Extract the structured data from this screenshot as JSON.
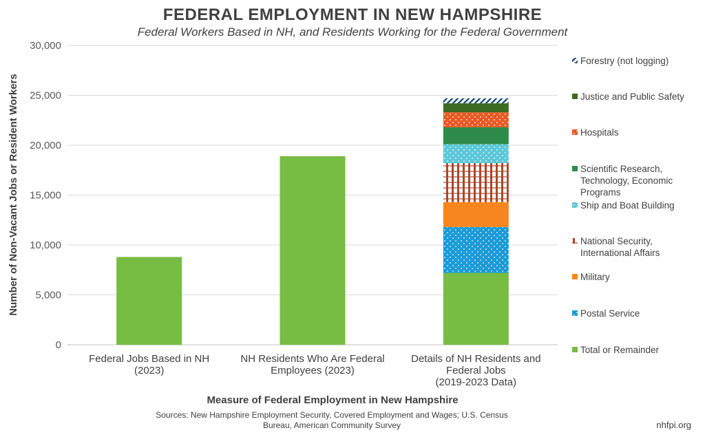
{
  "header": {
    "title": "FEDERAL EMPLOYMENT IN NEW HAMPSHIRE",
    "subtitle": "Federal Workers Based in NH, and Residents Working for the Federal Government"
  },
  "footer": {
    "source": "Sources: New Hampshire Employment Security, Covered Employment and Wages; U.S. Census Bureau, American Community Survey",
    "brand": "nhfpi.org"
  },
  "chart_data": {
    "type": "bar",
    "stacked": true,
    "title": "FEDERAL EMPLOYMENT IN NEW HAMPSHIRE",
    "subtitle": "Federal Workers Based in NH, and Residents Working for the Federal Government",
    "xlabel": "Measure of Federal Employment in New Hampshire",
    "ylabel": "Number of Non-Vacant Jobs or Resident Workers",
    "ylim": [
      0,
      30000
    ],
    "yticks": [
      0,
      5000,
      10000,
      15000,
      20000,
      25000,
      30000
    ],
    "ytick_labels": [
      "0",
      "5,000",
      "10,000",
      "15,000",
      "20,000",
      "25,000",
      "30,000"
    ],
    "grid": true,
    "legend_position": "right",
    "categories": [
      [
        "Federal Jobs Based in NH",
        "(2023)"
      ],
      [
        "NH Residents Who Are Federal",
        "Employees (2023)"
      ],
      [
        "Details of NH Residents and",
        "Federal Jobs",
        "(2019-2023 Data)"
      ]
    ],
    "series": [
      {
        "name": "Total or Remainder",
        "color": "#77BC43",
        "pattern": "solid",
        "values": [
          8800,
          18900,
          7200
        ]
      },
      {
        "name": "Postal Service",
        "color": "#1B9BD7",
        "pattern": "dots",
        "values": [
          0,
          0,
          4600
        ]
      },
      {
        "name": "Military",
        "color": "#F7861E",
        "pattern": "solid",
        "values": [
          0,
          0,
          2500
        ]
      },
      {
        "name": "National Security, International Affairs",
        "color": "#A9472A",
        "pattern": "grid",
        "values": [
          0,
          0,
          3900
        ]
      },
      {
        "name": "Ship and Boat Building",
        "color": "#5CC8D8",
        "pattern": "dots",
        "values": [
          0,
          0,
          1900
        ]
      },
      {
        "name": "Scientific Research, Technology, Economic Programs",
        "color": "#2E8B48",
        "pattern": "solid",
        "values": [
          0,
          0,
          1700
        ]
      },
      {
        "name": "Hospitals",
        "color": "#E85A24",
        "pattern": "dots",
        "values": [
          0,
          0,
          1500
        ]
      },
      {
        "name": "Justice and Public Safety",
        "color": "#3C6B22",
        "pattern": "solid",
        "values": [
          0,
          0,
          900
        ]
      },
      {
        "name": "Forestry (not logging)",
        "color": "#1F4E79",
        "pattern": "hatch",
        "values": [
          0,
          0,
          500
        ]
      }
    ]
  }
}
